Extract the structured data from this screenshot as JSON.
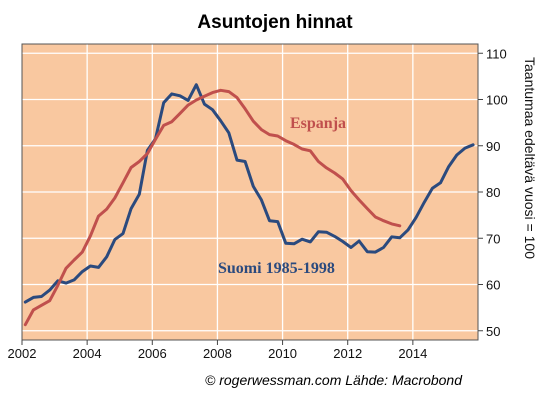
{
  "chart_data": {
    "type": "line",
    "title": "Asuntojen hinnat",
    "ylabel": "Taantumaa edeltävä vuosi = 100",
    "source": "© rogerwessman.com Lähde: Macrobond",
    "xlim": [
      2002,
      2016
    ],
    "ylim": [
      48,
      112
    ],
    "x_ticks": [
      "2002",
      "2004",
      "2006",
      "2008",
      "2010",
      "2012",
      "2014"
    ],
    "y_ticks": [
      "50",
      "60",
      "70",
      "80",
      "90",
      "100",
      "110"
    ],
    "grid": true,
    "plot_background": "#F9C8A0",
    "series": [
      {
        "name": "Suomi 1985-1998",
        "color": "#2B4A7E",
        "x": [
          2002.1,
          2002.35,
          2002.6,
          2002.85,
          2003.1,
          2003.35,
          2003.6,
          2003.85,
          2004.1,
          2004.35,
          2004.6,
          2004.85,
          2005.1,
          2005.35,
          2005.6,
          2005.85,
          2006.1,
          2006.35,
          2006.6,
          2006.85,
          2007.1,
          2007.35,
          2007.6,
          2007.85,
          2008.1,
          2008.35,
          2008.6,
          2008.85,
          2009.1,
          2009.35,
          2009.6,
          2009.85,
          2010.1,
          2010.35,
          2010.6,
          2010.85,
          2011.1,
          2011.35,
          2011.6,
          2011.85,
          2012.1,
          2012.35,
          2012.6,
          2012.85,
          2013.1,
          2013.35,
          2013.6,
          2013.85,
          2014.1,
          2014.35,
          2014.6,
          2014.85,
          2015.1,
          2015.35,
          2015.6,
          2015.85
        ],
        "values": [
          56.2,
          57.2,
          57.4,
          58.8,
          60.8,
          60.3,
          61.0,
          62.8,
          64.0,
          63.7,
          66.0,
          69.7,
          71.0,
          76.4,
          79.5,
          89.0,
          91.5,
          99.3,
          101.2,
          100.8,
          99.8,
          103.2,
          99.0,
          97.8,
          95.4,
          92.8,
          86.9,
          86.6,
          81.2,
          78.3,
          73.8,
          73.6,
          68.9,
          68.8,
          69.8,
          69.2,
          71.4,
          71.3,
          70.4,
          69.3,
          68.0,
          69.4,
          67.1,
          67.0,
          68.0,
          70.3,
          70.1,
          71.8,
          74.5,
          77.8,
          80.8,
          82.0,
          85.5,
          88.0,
          89.5,
          90.2
        ]
      },
      {
        "name": "Espanja",
        "color": "#C0504D",
        "x": [
          2002.1,
          2002.35,
          2002.6,
          2002.85,
          2003.1,
          2003.35,
          2003.6,
          2003.85,
          2004.1,
          2004.35,
          2004.6,
          2004.85,
          2005.1,
          2005.35,
          2005.6,
          2005.85,
          2006.1,
          2006.35,
          2006.6,
          2006.85,
          2007.1,
          2007.35,
          2007.6,
          2007.85,
          2008.1,
          2008.35,
          2008.6,
          2008.85,
          2009.1,
          2009.35,
          2009.6,
          2009.85,
          2010.1,
          2010.35,
          2010.6,
          2010.85,
          2011.1,
          2011.35,
          2011.6,
          2011.85,
          2012.1,
          2012.35,
          2012.6,
          2012.85,
          2013.1,
          2013.35,
          2013.6
        ],
        "values": [
          51.3,
          54.5,
          55.5,
          56.5,
          59.8,
          63.5,
          65.3,
          67.0,
          70.5,
          74.8,
          76.3,
          78.7,
          82.0,
          85.3,
          86.6,
          88.3,
          91.4,
          94.4,
          95.2,
          97.0,
          98.8,
          99.9,
          100.7,
          101.5,
          102.0,
          101.7,
          100.4,
          98.0,
          95.3,
          93.5,
          92.4,
          92.1,
          91.1,
          90.3,
          89.3,
          88.9,
          86.6,
          85.2,
          84.1,
          82.8,
          80.3,
          78.3,
          76.4,
          74.6,
          73.8,
          73.1,
          72.7
        ]
      }
    ]
  }
}
